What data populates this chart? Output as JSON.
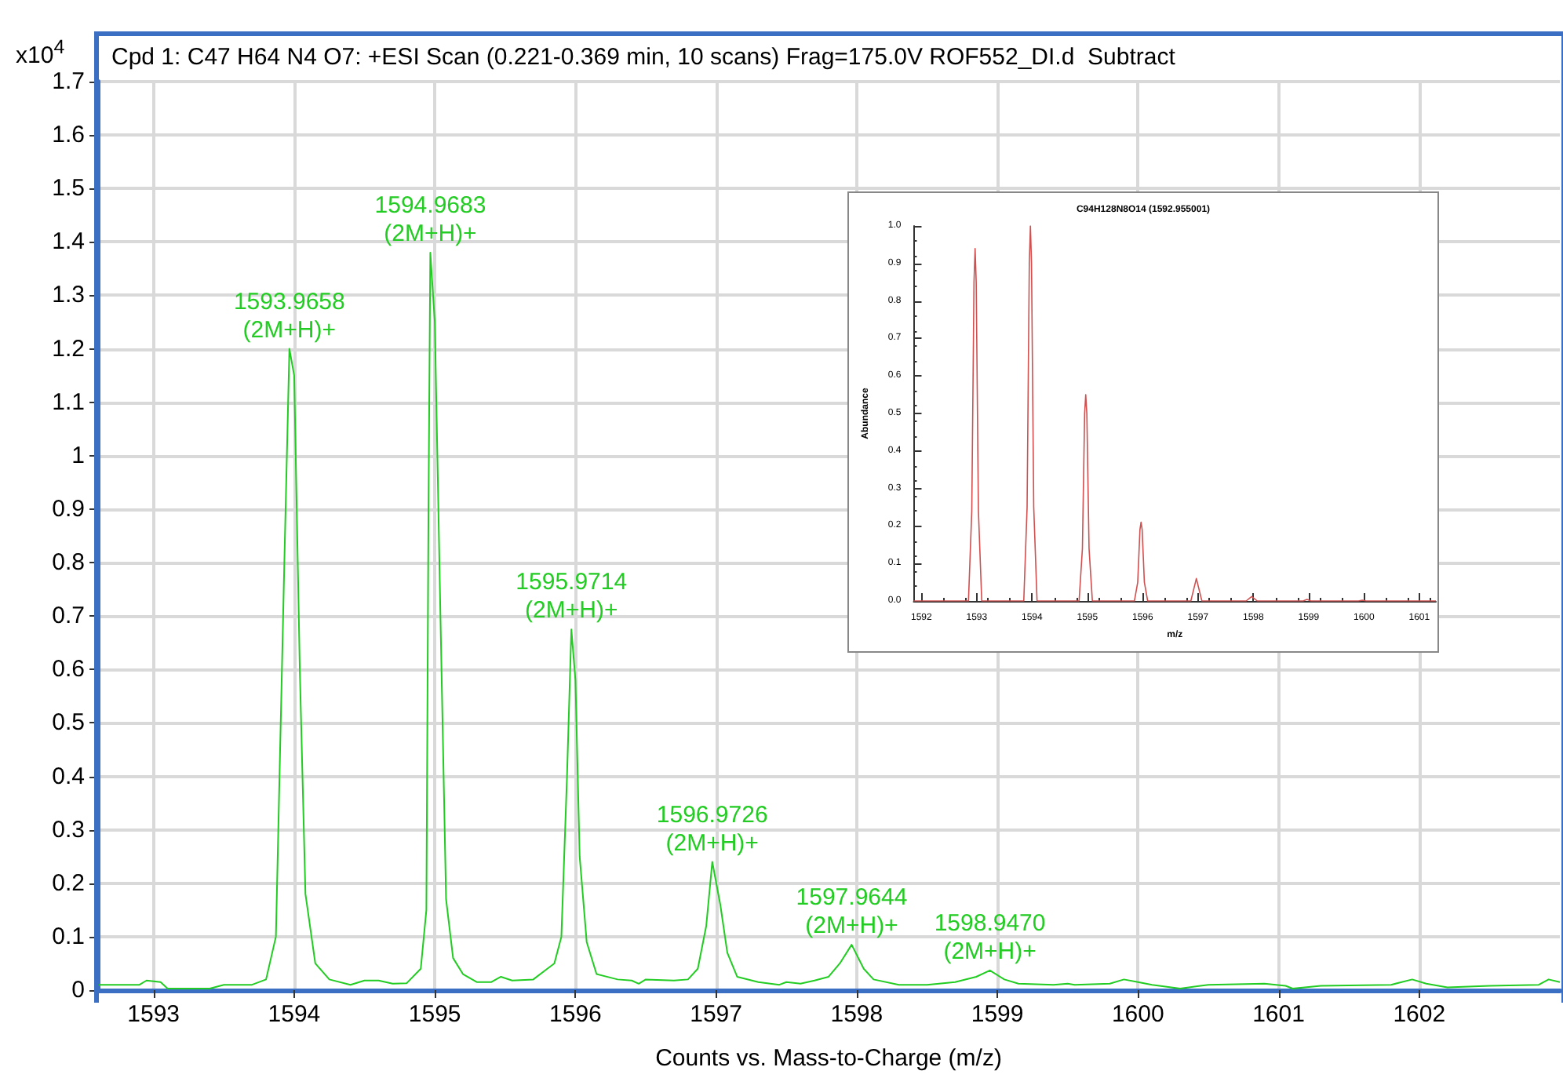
{
  "chart_data": [
    {
      "type": "line",
      "title": "Cpd 1: C47 H64 N4 O7: +ESI Scan (0.221-0.369 min, 10 scans) Frag=175.0V ROF552_DI.d  Subtract",
      "xlabel": "Counts vs. Mass-to-Charge (m/z)",
      "ylabel": "x10$^{4}$",
      "marker": "none",
      "grid": true,
      "xlim": [
        1592.6,
        1603.0
      ],
      "xticks": [
        1593,
        1594,
        1595,
        1596,
        1597,
        1598,
        1599,
        1600,
        1601,
        1602
      ],
      "ylim": [
        0,
        1.7
      ],
      "yticks": [
        0,
        0.1,
        0.2,
        0.3,
        0.4,
        0.5,
        0.6,
        0.7,
        0.8,
        0.9,
        1,
        1.1,
        1.2,
        1.3,
        1.4,
        1.5,
        1.6,
        1.7
      ],
      "series": [
        {
          "color": "#22cc22",
          "x": [
            1592.6,
            1592.9,
            1592.95,
            1593.05,
            1593.1,
            1593.4,
            1593.5,
            1593.7,
            1593.8,
            1593.87,
            1593.93,
            1593.966,
            1594.0,
            1594.04,
            1594.08,
            1594.15,
            1594.25,
            1594.4,
            1594.5,
            1594.6,
            1594.7,
            1594.8,
            1594.9,
            1594.94,
            1594.955,
            1594.968,
            1595.0,
            1595.04,
            1595.08,
            1595.13,
            1595.2,
            1595.3,
            1595.4,
            1595.47,
            1595.55,
            1595.7,
            1595.8,
            1595.85,
            1595.9,
            1595.94,
            1595.971,
            1596.0,
            1596.03,
            1596.08,
            1596.15,
            1596.3,
            1596.4,
            1596.45,
            1596.5,
            1596.7,
            1596.8,
            1596.87,
            1596.93,
            1596.973,
            1597.03,
            1597.08,
            1597.15,
            1597.3,
            1597.45,
            1597.5,
            1597.6,
            1597.7,
            1597.8,
            1597.88,
            1597.964,
            1598.05,
            1598.12,
            1598.3,
            1598.5,
            1598.7,
            1598.85,
            1598.947,
            1599.05,
            1599.15,
            1599.4,
            1599.5,
            1599.55,
            1599.8,
            1599.9,
            1600.0,
            1600.1,
            1600.3,
            1600.5,
            1600.9,
            1601.05,
            1601.1,
            1601.3,
            1601.8,
            1601.95,
            1602.05,
            1602.2,
            1602.5,
            1602.85,
            1602.92,
            1603.0
          ],
          "values": [
            0.01,
            0.01,
            0.018,
            0.015,
            0.003,
            0.003,
            0.01,
            0.01,
            0.02,
            0.1,
            0.8,
            1.2,
            1.15,
            0.6,
            0.18,
            0.05,
            0.02,
            0.01,
            0.018,
            0.018,
            0.012,
            0.013,
            0.04,
            0.15,
            0.9,
            1.38,
            1.25,
            0.7,
            0.17,
            0.06,
            0.03,
            0.015,
            0.015,
            0.025,
            0.018,
            0.02,
            0.04,
            0.05,
            0.1,
            0.4,
            0.675,
            0.58,
            0.25,
            0.09,
            0.03,
            0.02,
            0.018,
            0.012,
            0.02,
            0.018,
            0.02,
            0.04,
            0.12,
            0.24,
            0.16,
            0.07,
            0.025,
            0.015,
            0.01,
            0.015,
            0.012,
            0.018,
            0.025,
            0.05,
            0.085,
            0.04,
            0.02,
            0.01,
            0.01,
            0.015,
            0.025,
            0.037,
            0.02,
            0.012,
            0.01,
            0.012,
            0.01,
            0.012,
            0.02,
            0.015,
            0.01,
            0.003,
            0.01,
            0.012,
            0.008,
            0.003,
            0.008,
            0.01,
            0.02,
            0.012,
            0.005,
            0.008,
            0.01,
            0.02,
            0.015
          ]
        }
      ],
      "annotations": [
        {
          "text": "1593.9658\n(2M+H)+",
          "x": 1593.9658,
          "y": 1.2
        },
        {
          "text": "1594.9683\n(2M+H)+",
          "x": 1594.9683,
          "y": 1.38
        },
        {
          "text": "1595.9714\n(2M+H)+",
          "x": 1595.9714,
          "y": 0.675
        },
        {
          "text": "1596.9726\n(2M+H)+",
          "x": 1596.9726,
          "y": 0.24
        },
        {
          "text": "1597.9644\n(2M+H)+",
          "x": 1597.9644,
          "y": 0.085
        },
        {
          "text": "1598.9470\n(2M+H)+",
          "x": 1598.947,
          "y": 0.037
        }
      ]
    },
    {
      "type": "line",
      "title": "C94H128N8O14 (1592.955001)",
      "xlabel": "m/z",
      "ylabel": "Abundance",
      "marker": "none",
      "xlim": [
        1591.86,
        1601.3
      ],
      "xticks": [
        1592,
        1593,
        1594,
        1595,
        1596,
        1597,
        1598,
        1599,
        1600,
        1601
      ],
      "ylim": [
        0,
        1
      ],
      "yticks": [
        {
          "value": 0,
          "label": "0.0"
        },
        {
          "value": 0.1,
          "label": "0.1"
        },
        {
          "value": 0.2,
          "label": "0.2"
        },
        {
          "value": 0.3,
          "label": "0.3"
        },
        {
          "value": 0.4,
          "label": "0.4"
        },
        {
          "value": 0.5,
          "label": "0.5"
        },
        {
          "value": 0.6,
          "label": "0.6"
        },
        {
          "value": 0.7,
          "label": "0.7"
        },
        {
          "value": 0.8,
          "label": "0.8"
        },
        {
          "value": 0.9,
          "label": "0.9"
        },
        {
          "value": 1,
          "label": "1.0"
        }
      ],
      "series": [
        {
          "color": "#d05050",
          "x": [
            1591.86,
            1592.85,
            1592.91,
            1592.95,
            1592.97,
            1592.99,
            1593.03,
            1593.09,
            1593.85,
            1593.91,
            1593.95,
            1593.97,
            1593.99,
            1594.03,
            1594.09,
            1594.85,
            1594.91,
            1594.95,
            1594.97,
            1594.99,
            1595.03,
            1595.09,
            1595.85,
            1595.91,
            1595.95,
            1595.97,
            1595.99,
            1596.03,
            1596.09,
            1596.87,
            1596.97,
            1597.07,
            1597.87,
            1597.97,
            1598.07,
            1598.9,
            1598.97,
            1599.04,
            1599.9,
            1599.97,
            1600.04,
            1601.3
          ],
          "values": [
            0,
            0,
            0.24,
            0.85,
            0.94,
            0.85,
            0.24,
            0,
            0,
            0.25,
            0.9,
            1,
            0.9,
            0.25,
            0,
            0,
            0.14,
            0.5,
            0.55,
            0.5,
            0.14,
            0,
            0,
            0.05,
            0.19,
            0.21,
            0.19,
            0.05,
            0,
            0,
            0.06,
            0,
            0,
            0.012,
            0,
            0,
            0.004,
            0,
            0,
            0.002,
            0,
            0
          ]
        }
      ]
    }
  ]
}
